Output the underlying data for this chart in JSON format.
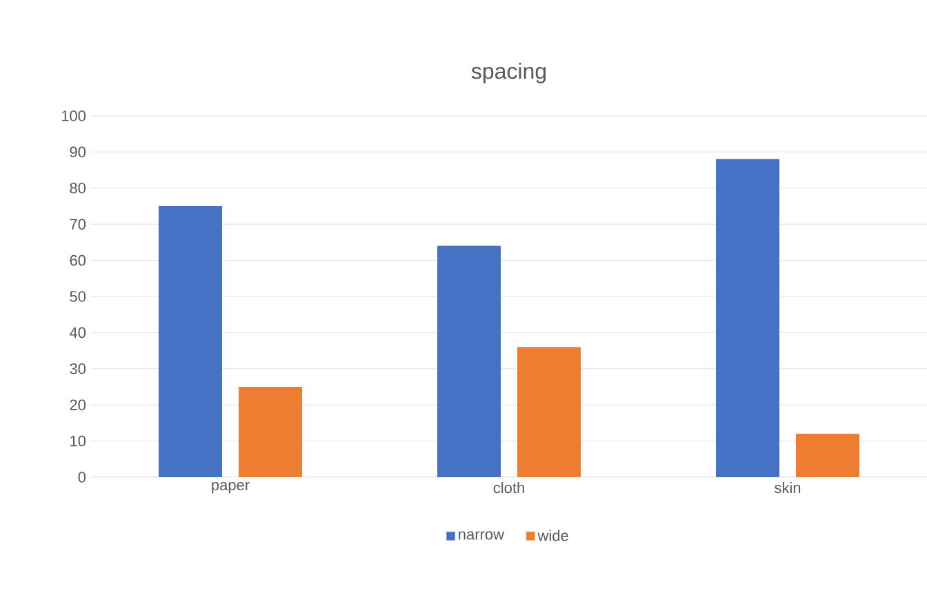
{
  "chart_data": {
    "type": "bar",
    "title": "spacing",
    "categories": [
      "paper",
      "cloth",
      "skin"
    ],
    "series": [
      {
        "name": "narrow",
        "color": "#4472c4",
        "values": [
          75,
          64,
          88
        ]
      },
      {
        "name": "wide",
        "color": "#ed7d31",
        "values": [
          25,
          36,
          12
        ]
      }
    ],
    "ylim": [
      0,
      100
    ],
    "yticks": [
      0,
      10,
      20,
      30,
      40,
      50,
      60,
      70,
      80,
      90,
      100
    ],
    "grid": "y",
    "legend": "bottom"
  }
}
